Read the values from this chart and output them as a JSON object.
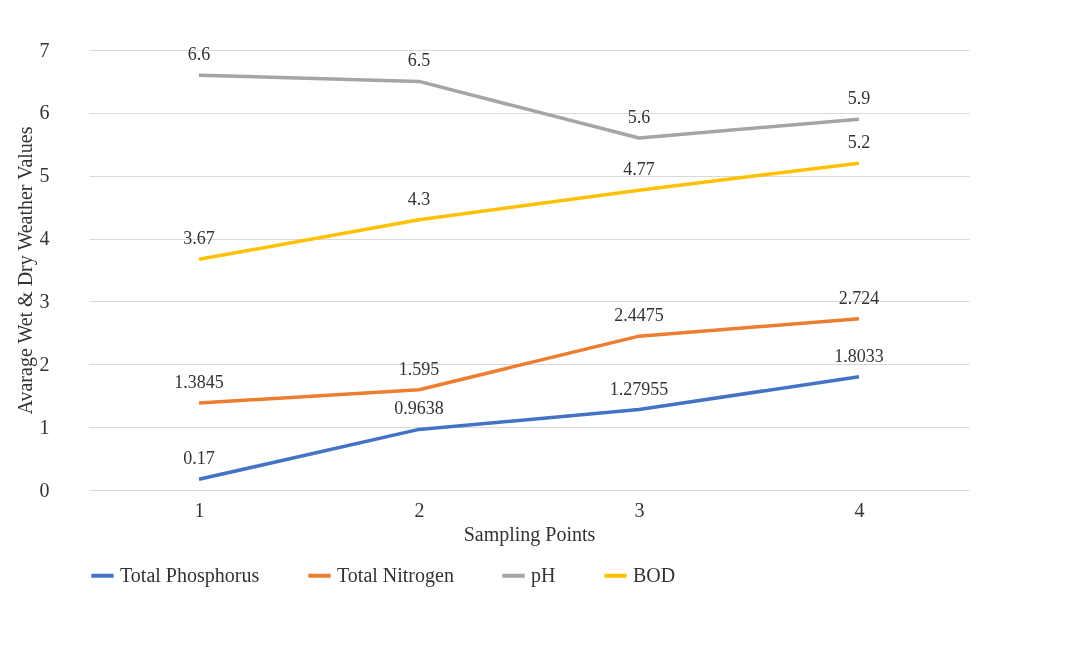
{
  "chart_data": {
    "type": "line",
    "xlabel": "Sampling Points",
    "ylabel": "Avarage Wet & Dry Weather Values",
    "categories": [
      "1",
      "2",
      "3",
      "4"
    ],
    "series": [
      {
        "name": "Total Phosphorus",
        "color": "#4472c4",
        "values": [
          0.17,
          0.9638,
          1.27955,
          1.8033
        ]
      },
      {
        "name": "Total Nitrogen",
        "color": "#ed7d31",
        "values": [
          1.3845,
          1.595,
          2.4475,
          2.724
        ]
      },
      {
        "name": "pH",
        "color": "#a5a5a5",
        "values": [
          6.6,
          6.5,
          5.6,
          5.9
        ]
      },
      {
        "name": "BOD",
        "color": "#ffc000",
        "values": [
          3.67,
          4.3,
          4.77,
          5.2
        ]
      }
    ],
    "ylim": [
      0,
      7
    ],
    "yticks": [
      0,
      1,
      2,
      3,
      4,
      5,
      6,
      7
    ],
    "grid": "y",
    "legend": "bottom",
    "data_labels": true,
    "line_style": "solid"
  }
}
